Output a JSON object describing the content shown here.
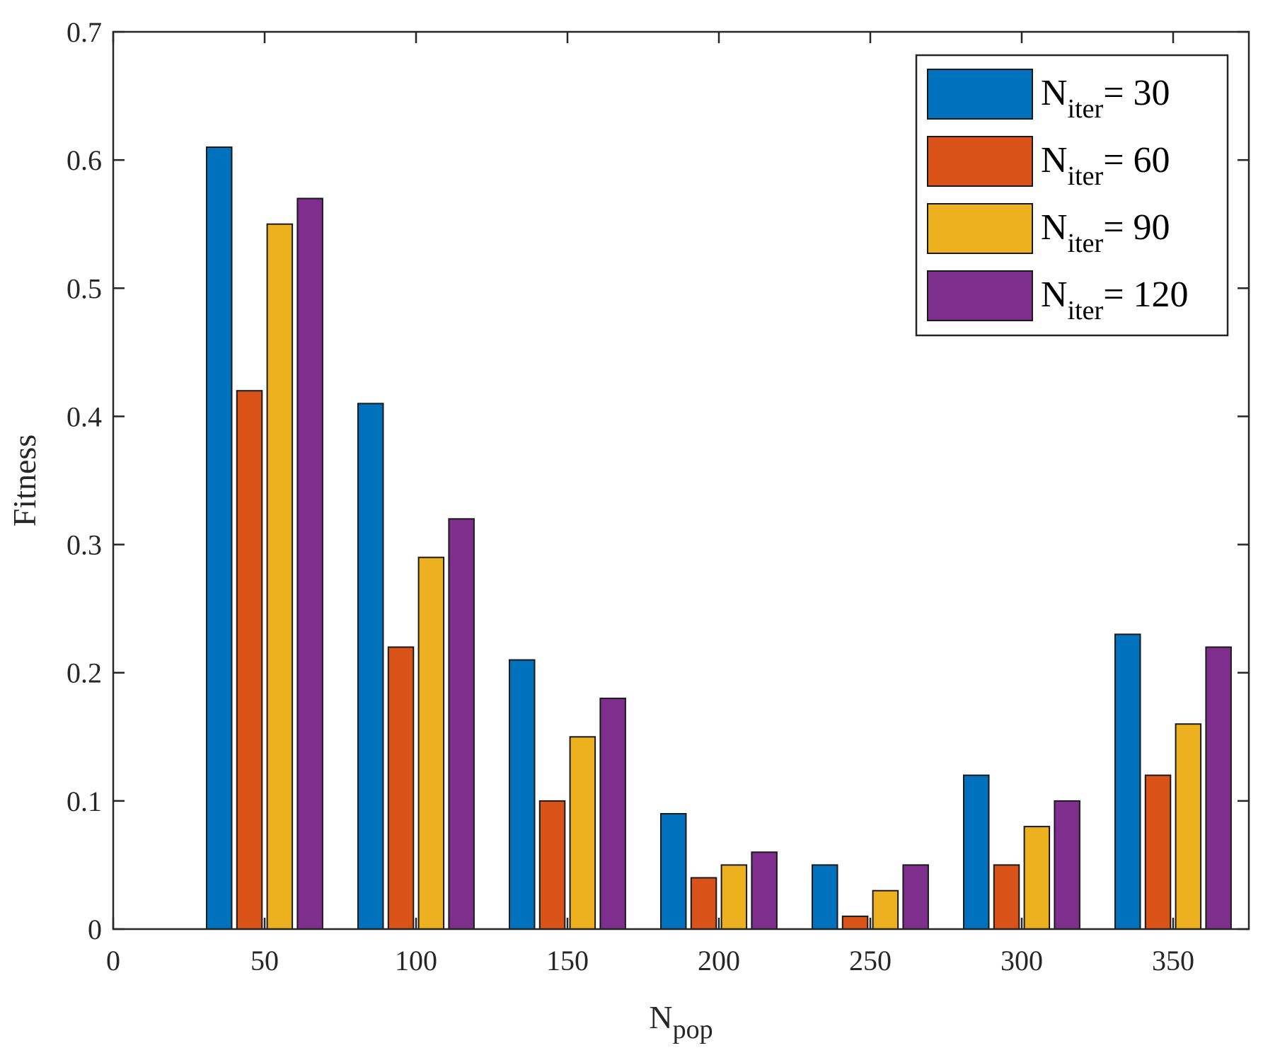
{
  "chart_data": {
    "type": "bar",
    "categories": [
      "50",
      "100",
      "150",
      "200",
      "250",
      "300",
      "350"
    ],
    "x": [
      50,
      100,
      150,
      200,
      250,
      300,
      350
    ],
    "series": [
      {
        "name": "N iter = 30",
        "name_parts": {
          "main": "N",
          "sub": "iter",
          "suffix": "= 30"
        },
        "color": "#0072BD",
        "values": [
          0.61,
          0.41,
          0.21,
          0.09,
          0.05,
          0.12,
          0.23
        ]
      },
      {
        "name": "N iter = 60",
        "name_parts": {
          "main": "N",
          "sub": "iter",
          "suffix": "= 60"
        },
        "color": "#D95319",
        "values": [
          0.42,
          0.22,
          0.1,
          0.04,
          0.01,
          0.05,
          0.12
        ]
      },
      {
        "name": "N iter = 90",
        "name_parts": {
          "main": "N",
          "sub": "iter",
          "suffix": "= 90"
        },
        "color": "#EDB120",
        "values": [
          0.55,
          0.29,
          0.15,
          0.05,
          0.03,
          0.08,
          0.16
        ]
      },
      {
        "name": "N iter = 120",
        "name_parts": {
          "main": "N",
          "sub": "iter",
          "suffix": "= 120"
        },
        "color": "#7E2F8E",
        "values": [
          0.57,
          0.32,
          0.18,
          0.06,
          0.05,
          0.1,
          0.22
        ]
      }
    ],
    "xlabel": {
      "main": "N",
      "sub": "pop"
    },
    "ylabel": "Fitness",
    "xlim": [
      0,
      375
    ],
    "ylim": [
      0,
      0.7
    ],
    "xticks": [
      0,
      50,
      100,
      150,
      200,
      250,
      300,
      350
    ],
    "yticks": [
      0,
      0.1,
      0.2,
      0.3,
      0.4,
      0.5,
      0.6,
      0.7
    ],
    "ytick_labels": [
      "0",
      "0.1",
      "0.2",
      "0.3",
      "0.4",
      "0.5",
      "0.6",
      "0.7"
    ],
    "legend_position": "top-right",
    "grid": false
  }
}
